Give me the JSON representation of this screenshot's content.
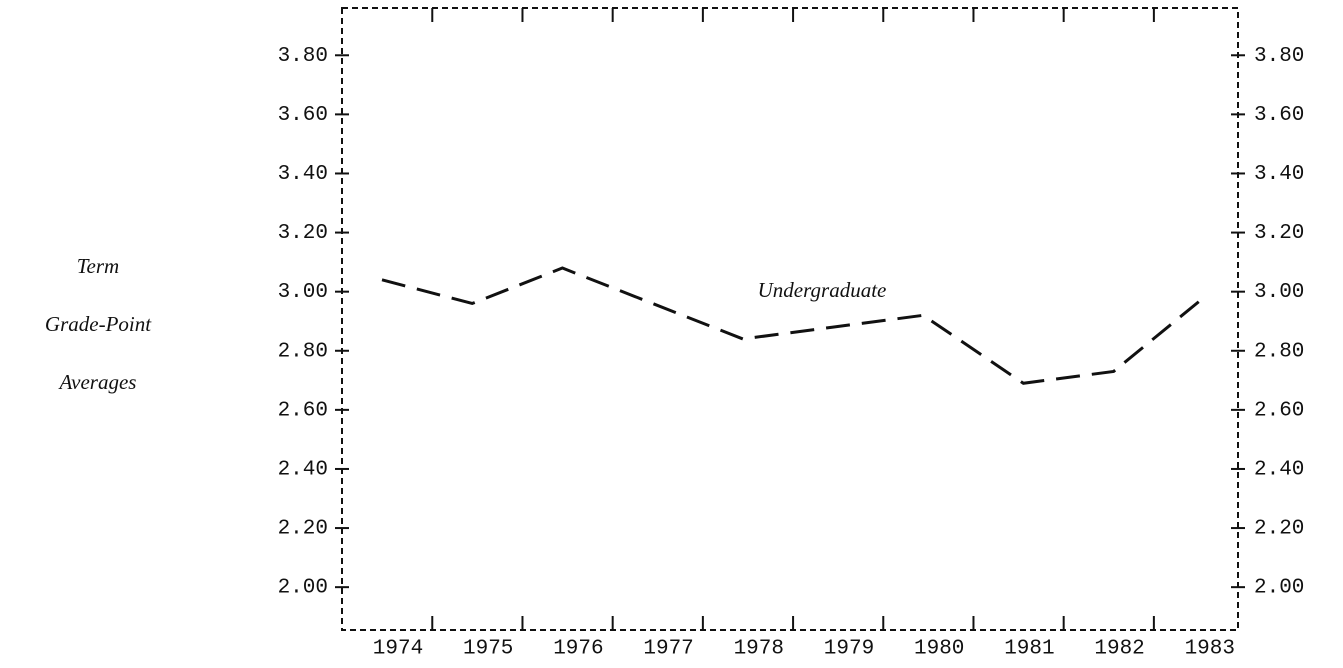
{
  "chart_data": {
    "type": "line",
    "y_label": [
      "Term",
      "Grade-Point",
      "Averages"
    ],
    "categories": [
      "1974",
      "1975",
      "1976",
      "1977",
      "1978",
      "1979",
      "1980",
      "1981",
      "1982",
      "1983"
    ],
    "series": [
      {
        "name": "Undergraduate",
        "color": "#111111",
        "values": [
          3.04,
          2.96,
          3.08,
          2.96,
          2.84,
          2.88,
          2.92,
          2.69,
          2.73,
          2.98
        ]
      }
    ],
    "ylim": [
      1.855,
      3.96
    ],
    "yticks": [
      {
        "value": 2.0,
        "label": "2.00"
      },
      {
        "value": 2.2,
        "label": "2.20"
      },
      {
        "value": 2.4,
        "label": "2.40"
      },
      {
        "value": 2.6,
        "label": "2.60"
      },
      {
        "value": 2.8,
        "label": "2.80"
      },
      {
        "value": 3.0,
        "label": "3.00"
      },
      {
        "value": 3.2,
        "label": "3.20"
      },
      {
        "value": 3.4,
        "label": "3.40"
      },
      {
        "value": 3.6,
        "label": "3.60"
      },
      {
        "value": 3.8,
        "label": "3.80"
      }
    ],
    "right_axis_labels": true
  }
}
